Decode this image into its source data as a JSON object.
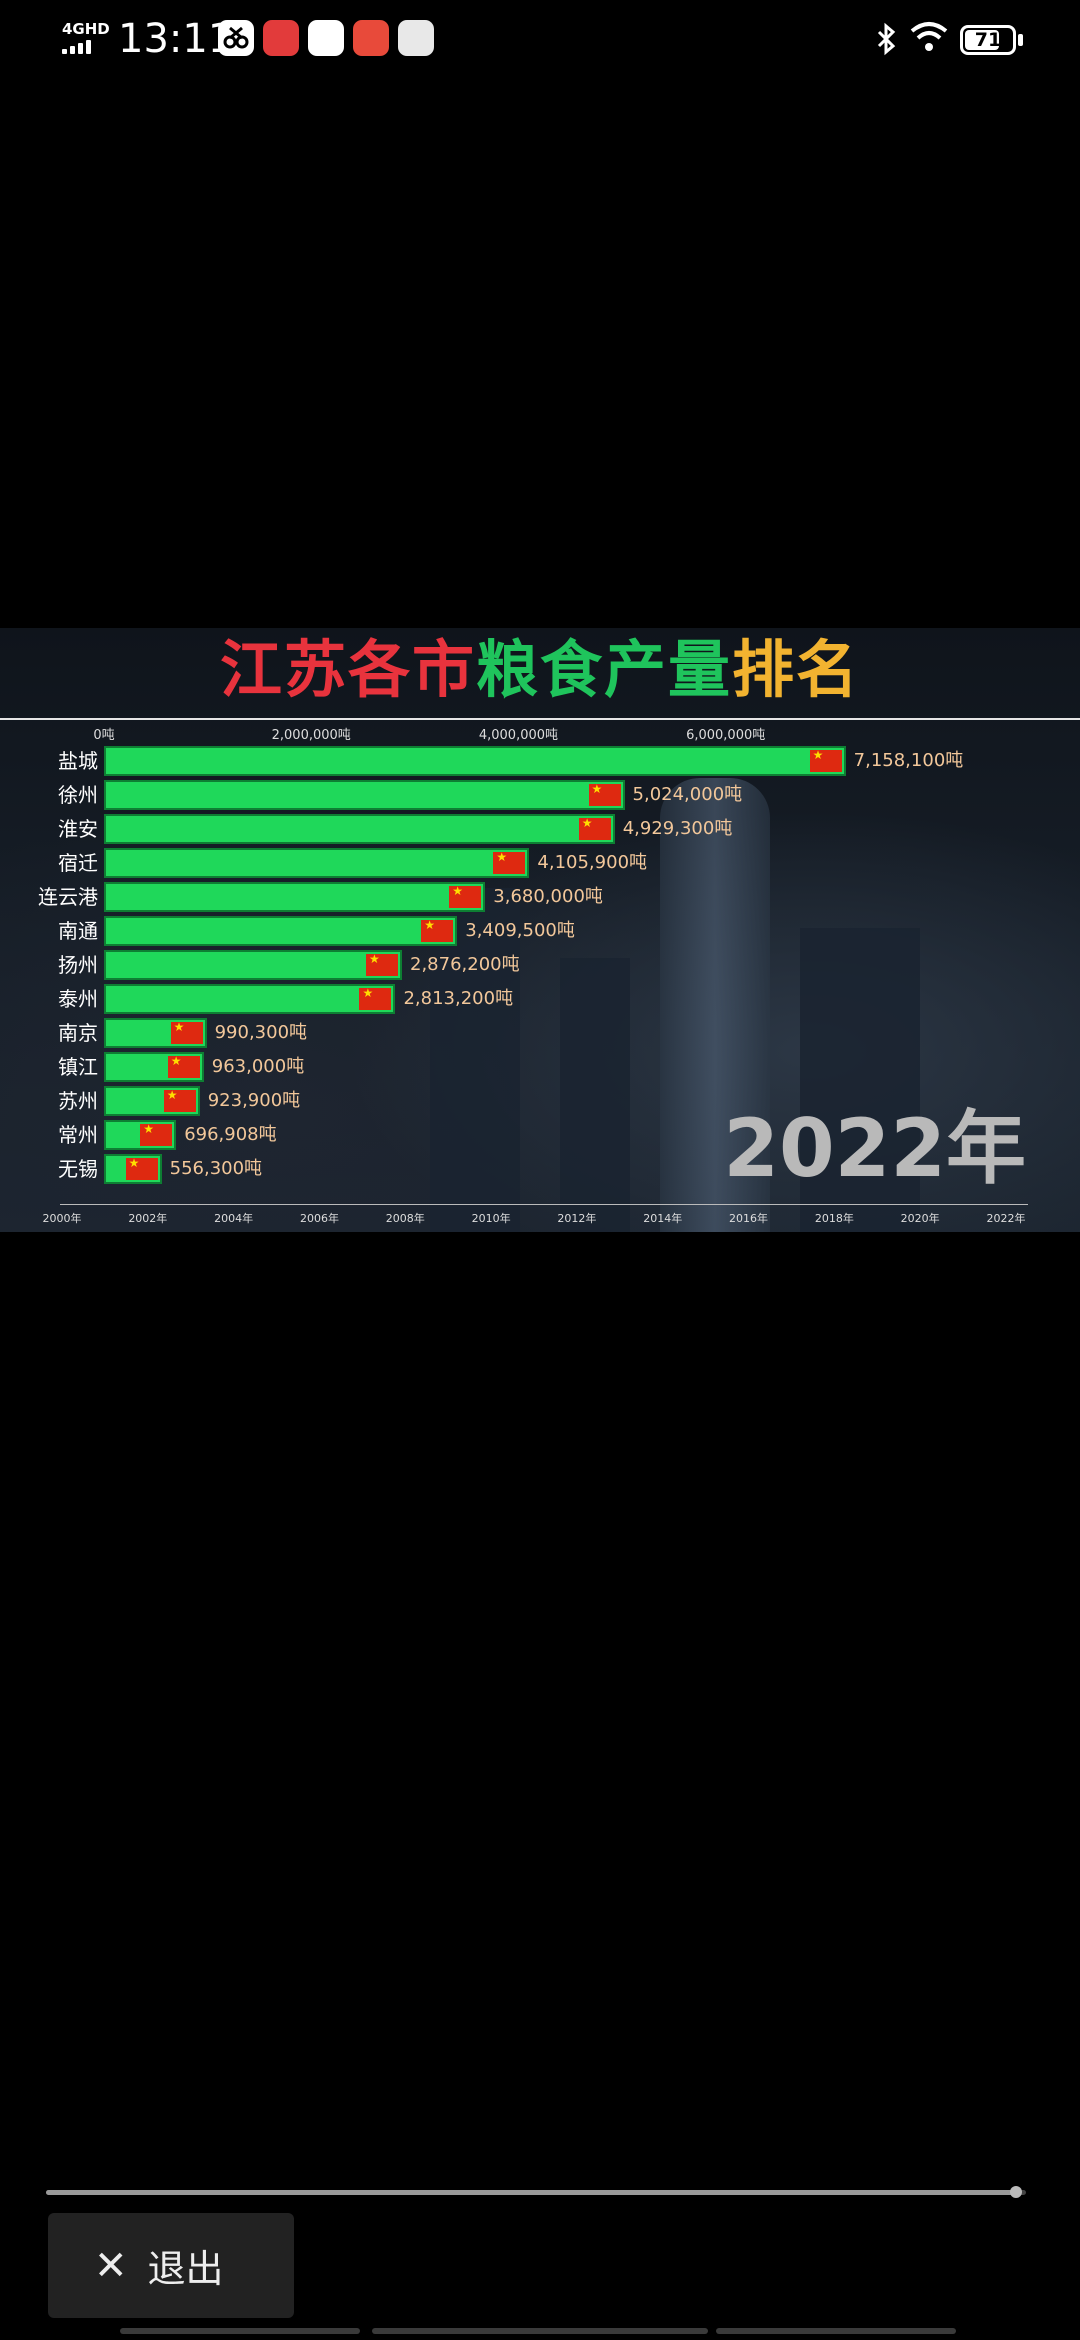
{
  "status_bar": {
    "network": "4GHD",
    "time": "13:11",
    "battery": "71",
    "battery_level": 0.71,
    "icons": [
      "scissors-app-icon",
      "taobao-app-icon",
      "tieba-app-icon",
      "shop-app-icon",
      "avatar-app-icon"
    ]
  },
  "video": {
    "title_parts": [
      "江苏各市",
      "粮食产量",
      "排名"
    ],
    "year_overlay": "2022年",
    "top_axis_ticks": [
      "0吨",
      "2,000,000吨",
      "4,000,000吨",
      "6,000,000吨"
    ],
    "timeline_ticks": [
      "2000年",
      "2002年",
      "2004年",
      "2006年",
      "2008年",
      "2010年",
      "2012年",
      "2014年",
      "2016年",
      "2018年",
      "2020年",
      "2022年"
    ],
    "colors": {
      "bar": "#1fd85a",
      "title_red": "#e8333d",
      "title_green": "#1fc45c",
      "title_orange": "#f2b330",
      "value_text": "#f2c79a"
    }
  },
  "chart_data": {
    "type": "bar",
    "title": "江苏各市粮食产量排名",
    "orientation": "horizontal",
    "categories": [
      "盐城",
      "徐州",
      "淮安",
      "宿迁",
      "连云港",
      "南通",
      "扬州",
      "泰州",
      "南京",
      "镇江",
      "苏州",
      "常州",
      "无锡"
    ],
    "values": [
      7158100,
      5024000,
      4929300,
      4105900,
      3680000,
      3409500,
      2876200,
      2813200,
      990300,
      963000,
      923900,
      696908,
      556300
    ],
    "value_labels": [
      "7,158,100吨",
      "5,024,000吨",
      "4,929,300吨",
      "4,105,900吨",
      "3,680,000吨",
      "3,409,500吨",
      "2,876,200吨",
      "2,813,200吨",
      "990,300吨",
      "963,000吨",
      "923,900吨",
      "696,908吨",
      "556,300吨"
    ],
    "xlim": [
      0,
      7200000
    ],
    "unit": "吨",
    "year": "2022年"
  },
  "player": {
    "exit_label": "退出",
    "progress": 0.99
  }
}
